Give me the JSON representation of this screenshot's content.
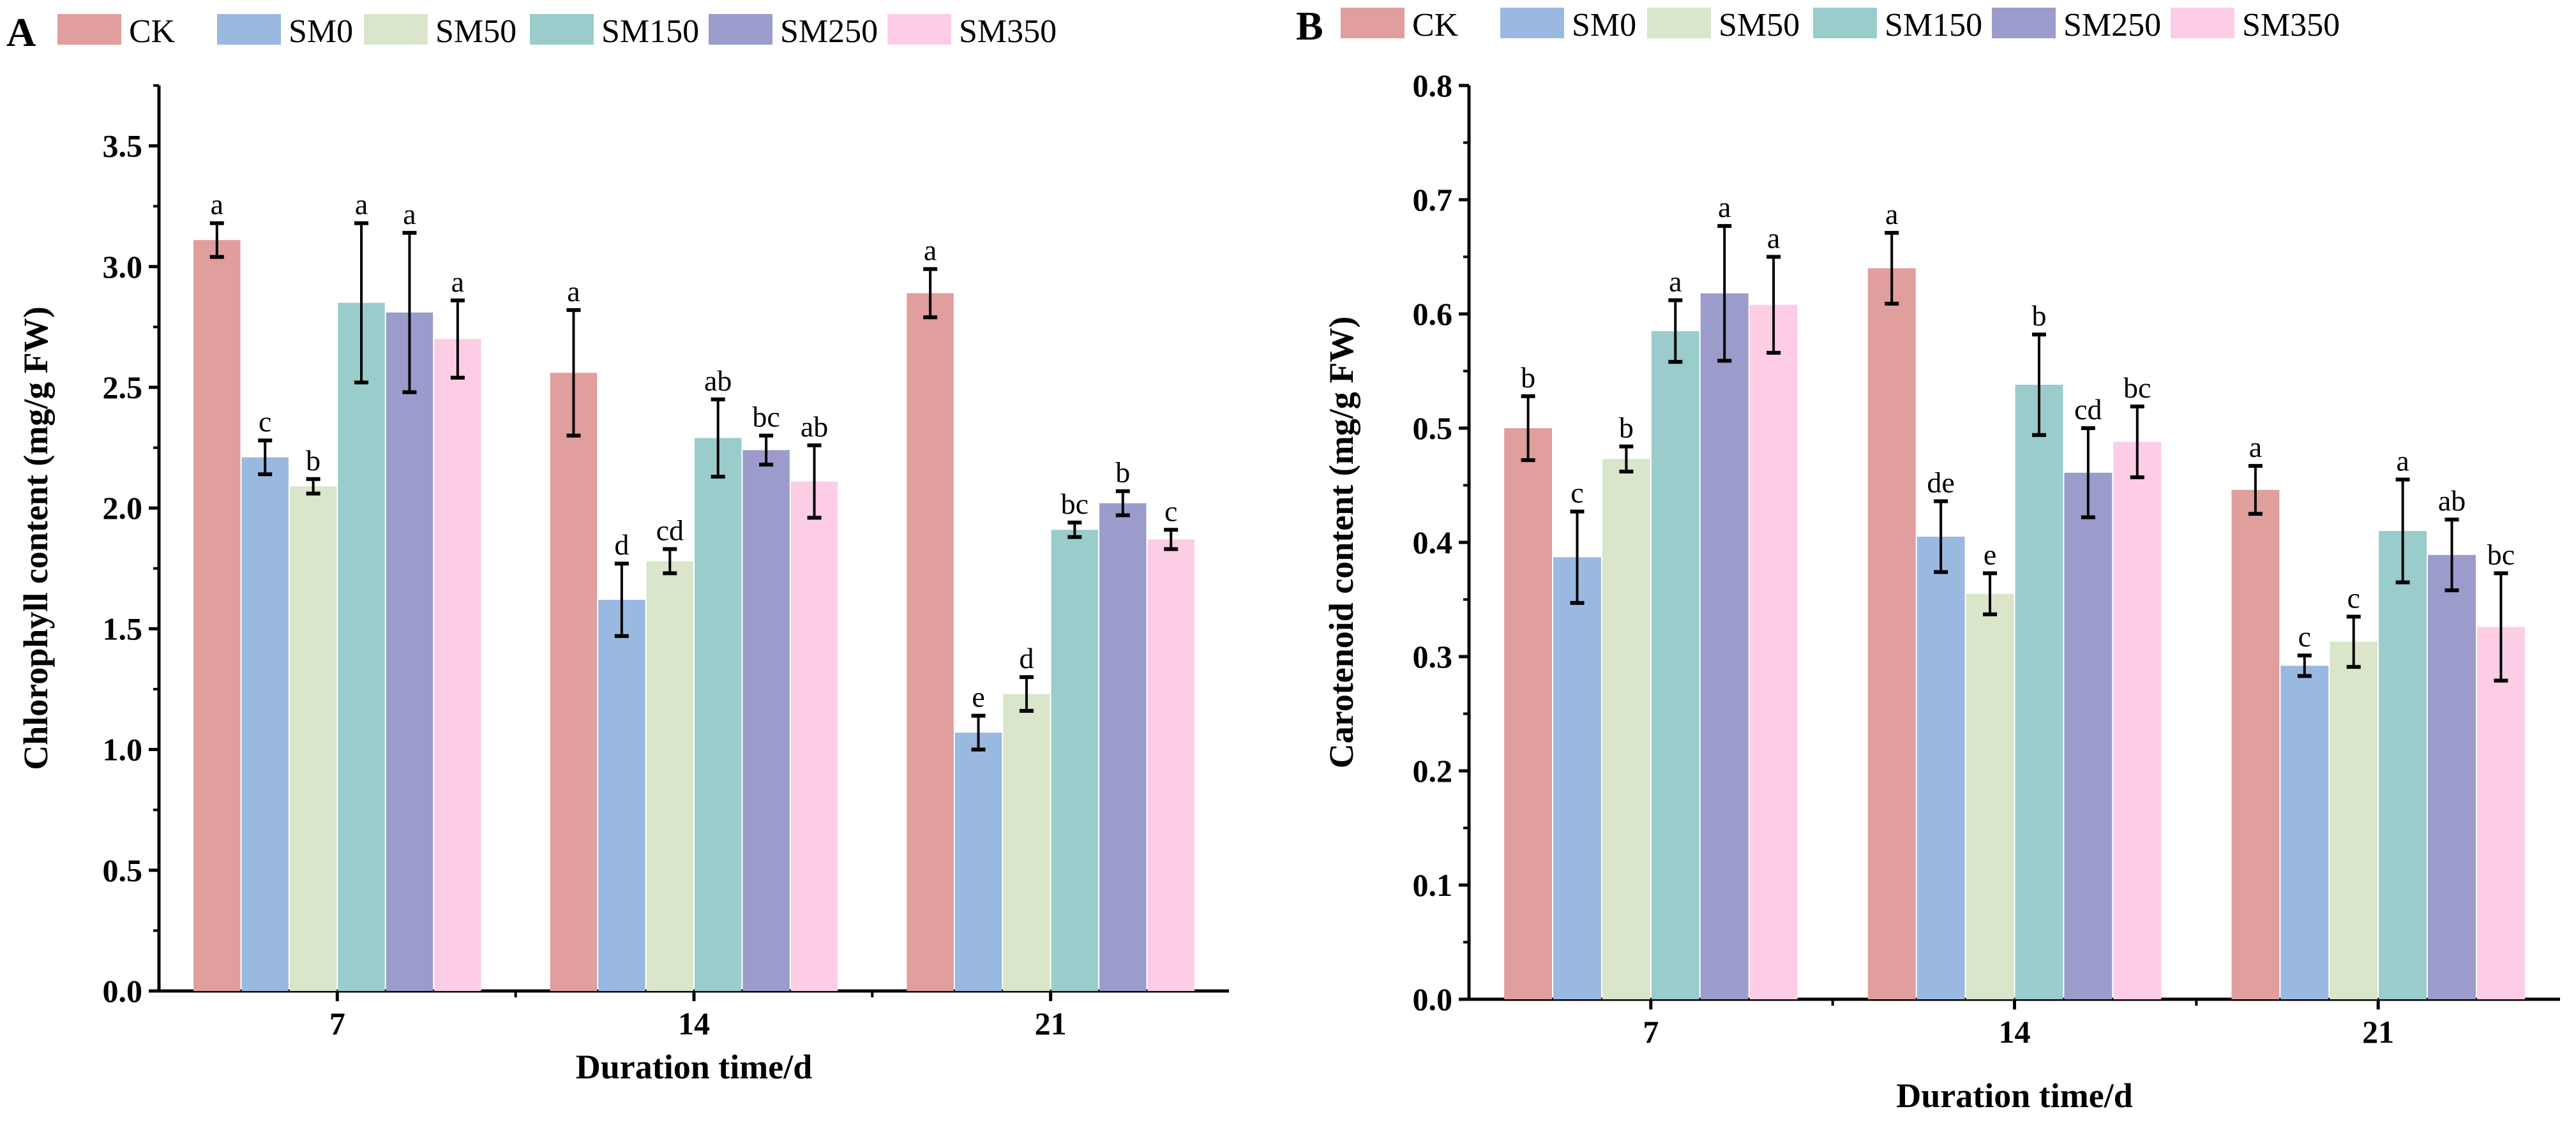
{
  "legend": [
    "CK",
    "SM0",
    "SM50",
    "SM150",
    "SM250",
    "SM350"
  ],
  "colors": [
    "#e09e9c",
    "#9ab9e0",
    "#d9e6c9",
    "#99cccb",
    "#9b9bcc",
    "#fdcde6"
  ],
  "chart_data": [
    {
      "type": "bar",
      "panel": "A",
      "title": "",
      "xlabel": "Duration time/d",
      "ylabel": "Chlorophyll content (mg/g FW)",
      "categories": [
        "7",
        "14",
        "21"
      ],
      "ylim": [
        0,
        3.75
      ],
      "yticks": [
        "0.0",
        "0.5",
        "1.0",
        "1.5",
        "2.0",
        "2.5",
        "3.0",
        "3.5"
      ],
      "legend_position": "top",
      "series": [
        {
          "name": "CK",
          "values": [
            3.11,
            2.56,
            2.89
          ],
          "errors": [
            0.07,
            0.26,
            0.1
          ],
          "letters": [
            "a",
            "a",
            "a"
          ]
        },
        {
          "name": "SM0",
          "values": [
            2.21,
            1.62,
            1.07
          ],
          "errors": [
            0.07,
            0.15,
            0.07
          ],
          "letters": [
            "c",
            "d",
            "e"
          ]
        },
        {
          "name": "SM50",
          "values": [
            2.09,
            1.78,
            1.23
          ],
          "errors": [
            0.03,
            0.05,
            0.07
          ],
          "letters": [
            "b",
            "cd",
            "d"
          ]
        },
        {
          "name": "SM150",
          "values": [
            2.85,
            2.29,
            1.91
          ],
          "errors": [
            0.33,
            0.16,
            0.03
          ],
          "letters": [
            "a",
            "ab",
            "bc"
          ]
        },
        {
          "name": "SM250",
          "values": [
            2.81,
            2.24,
            2.02
          ],
          "errors": [
            0.33,
            0.06,
            0.05
          ],
          "letters": [
            "a",
            "bc",
            "b"
          ]
        },
        {
          "name": "SM350",
          "values": [
            2.7,
            2.11,
            1.87
          ],
          "errors": [
            0.16,
            0.15,
            0.04
          ],
          "letters": [
            "a",
            "ab",
            "c"
          ]
        }
      ]
    },
    {
      "type": "bar",
      "panel": "B",
      "title": "",
      "xlabel": "Duration time/d",
      "ylabel": "Carotenoid content (mg/g FW)",
      "categories": [
        "7",
        "14",
        "21"
      ],
      "ylim": [
        0,
        0.8
      ],
      "yticks": [
        "0.0",
        "0.1",
        "0.2",
        "0.3",
        "0.4",
        "0.5",
        "0.6",
        "0.7",
        "0.8"
      ],
      "legend_position": "top",
      "series": [
        {
          "name": "CK",
          "values": [
            0.5,
            0.64,
            0.446
          ],
          "errors": [
            0.028,
            0.031,
            0.021
          ],
          "letters": [
            "b",
            "a",
            "a"
          ]
        },
        {
          "name": "SM0",
          "values": [
            0.387,
            0.405,
            0.292
          ],
          "errors": [
            0.04,
            0.031,
            0.009
          ],
          "letters": [
            "c",
            "de",
            "c"
          ]
        },
        {
          "name": "SM50",
          "values": [
            0.473,
            0.355,
            0.313
          ],
          "errors": [
            0.011,
            0.018,
            0.022
          ],
          "letters": [
            "b",
            "e",
            "c"
          ]
        },
        {
          "name": "SM150",
          "values": [
            0.585,
            0.538,
            0.41
          ],
          "errors": [
            0.027,
            0.044,
            0.045
          ],
          "letters": [
            "a",
            "b",
            "a"
          ]
        },
        {
          "name": "SM250",
          "values": [
            0.618,
            0.461,
            0.389
          ],
          "errors": [
            0.059,
            0.039,
            0.031
          ],
          "letters": [
            "a",
            "cd",
            "ab"
          ]
        },
        {
          "name": "SM350",
          "values": [
            0.608,
            0.488,
            0.326
          ],
          "errors": [
            0.042,
            0.031,
            0.047
          ],
          "letters": [
            "a",
            "bc",
            "bc"
          ]
        }
      ]
    }
  ]
}
